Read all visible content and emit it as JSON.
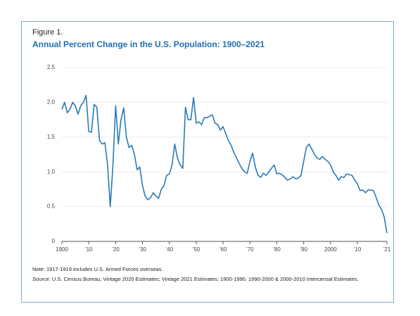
{
  "chart_data": {
    "type": "line",
    "label": "Figure 1.",
    "title": "Annual Percent Change in the U.S. Population: 1900–2021",
    "x": [
      1900,
      1901,
      1902,
      1903,
      1904,
      1905,
      1906,
      1907,
      1908,
      1909,
      1910,
      1911,
      1912,
      1913,
      1914,
      1915,
      1916,
      1917,
      1918,
      1919,
      1920,
      1921,
      1922,
      1923,
      1924,
      1925,
      1926,
      1927,
      1928,
      1929,
      1930,
      1931,
      1932,
      1933,
      1934,
      1935,
      1936,
      1937,
      1938,
      1939,
      1940,
      1941,
      1942,
      1943,
      1944,
      1945,
      1946,
      1947,
      1948,
      1949,
      1950,
      1951,
      1952,
      1953,
      1954,
      1955,
      1956,
      1957,
      1958,
      1959,
      1960,
      1961,
      1962,
      1963,
      1964,
      1965,
      1966,
      1967,
      1968,
      1969,
      1970,
      1971,
      1972,
      1973,
      1974,
      1975,
      1976,
      1977,
      1978,
      1979,
      1980,
      1981,
      1982,
      1983,
      1984,
      1985,
      1986,
      1987,
      1988,
      1989,
      1990,
      1991,
      1992,
      1993,
      1994,
      1995,
      1996,
      1997,
      1998,
      1999,
      2000,
      2001,
      2002,
      2003,
      2004,
      2005,
      2006,
      2007,
      2008,
      2009,
      2010,
      2011,
      2012,
      2013,
      2014,
      2015,
      2016,
      2017,
      2018,
      2019,
      2020,
      2021
    ],
    "series": [
      {
        "color": "#2a7ab8",
        "values": [
          1.9,
          2.0,
          1.85,
          1.9,
          2.0,
          1.95,
          1.83,
          1.95,
          2.0,
          2.1,
          1.58,
          1.57,
          1.97,
          1.93,
          1.45,
          1.4,
          1.42,
          1.1,
          0.5,
          1.1,
          1.95,
          1.4,
          1.75,
          1.92,
          1.5,
          1.35,
          1.38,
          1.25,
          1.03,
          1.07,
          0.8,
          0.65,
          0.6,
          0.63,
          0.7,
          0.65,
          0.62,
          0.75,
          0.8,
          0.95,
          0.97,
          1.1,
          1.4,
          1.2,
          1.1,
          1.05,
          1.93,
          1.75,
          1.75,
          2.07,
          1.7,
          1.72,
          1.68,
          1.78,
          1.78,
          1.8,
          1.82,
          1.7,
          1.68,
          1.6,
          1.65,
          1.55,
          1.45,
          1.38,
          1.28,
          1.2,
          1.12,
          1.05,
          1.0,
          0.98,
          1.15,
          1.27,
          1.07,
          0.95,
          0.92,
          0.98,
          0.95,
          1.0,
          1.05,
          1.1,
          0.97,
          0.98,
          0.96,
          0.92,
          0.88,
          0.9,
          0.93,
          0.9,
          0.91,
          0.95,
          1.15,
          1.35,
          1.4,
          1.33,
          1.25,
          1.2,
          1.18,
          1.22,
          1.18,
          1.15,
          1.1,
          1.0,
          0.95,
          0.88,
          0.93,
          0.92,
          0.97,
          0.96,
          0.95,
          0.88,
          0.83,
          0.73,
          0.74,
          0.7,
          0.74,
          0.74,
          0.73,
          0.63,
          0.52,
          0.46,
          0.35,
          0.12
        ]
      }
    ],
    "xlim": [
      1900,
      2021
    ],
    "xticks": [
      1900,
      {
        "value": 1910,
        "label": "’10"
      },
      {
        "value": 1920,
        "label": "’20"
      },
      {
        "value": 1930,
        "label": "’30"
      },
      {
        "value": 1940,
        "label": "’40"
      },
      {
        "value": 1950,
        "label": "’50"
      },
      {
        "value": 1960,
        "label": "’60"
      },
      {
        "value": 1970,
        "label": "’70"
      },
      {
        "value": 1980,
        "label": "’80"
      },
      {
        "value": 1990,
        "label": "’90"
      },
      {
        "value": 2000,
        "label": "2000"
      },
      {
        "value": 2010,
        "label": "’10"
      },
      {
        "value": 2021,
        "label": "’21"
      }
    ],
    "ylim": [
      0,
      2.5
    ],
    "yticks": [
      0,
      0.5,
      {
        "value": 1,
        "label": "1.0"
      },
      {
        "value": 1.5,
        "label": "1.5"
      },
      {
        "value": 2,
        "label": "2.0"
      },
      2.5
    ],
    "grid": true,
    "note": "Note: 1917-1919 includes U.S. Armed Forces overseas.",
    "source": "Source: U.S. Census Bureau, Vintage 2020 Estimates; Vintage 2021 Estimates; 1900-1990, 1990-2000 & 2000-2010 Intercensal Estimates."
  }
}
